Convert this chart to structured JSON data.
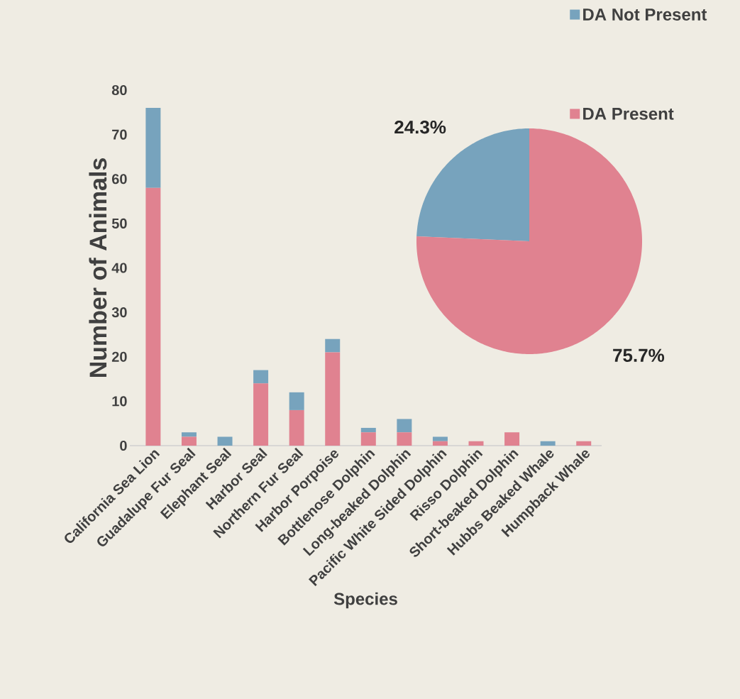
{
  "chart_data": [
    {
      "type": "bar",
      "stacked": true,
      "xlabel": "Species",
      "ylabel": "Number of Animals",
      "categories": [
        "California Sea Lion",
        "Guadalupe Fur Seal",
        "Elephant Seal",
        "Harbor Seal",
        "Northern Fur Seal",
        "Harbor Porpoise",
        "Bottlenose Dolphin",
        "Long-beaked Dolphin",
        "Pacific White Sided Dolphin",
        "Risso Dolphin",
        "Short-beaked Dolphin",
        "Hubbs Beaked Whale",
        "Humpback Whale"
      ],
      "series": [
        {
          "color": "#e08290",
          "values": [
            58,
            2,
            0,
            14,
            8,
            21,
            3,
            3,
            1,
            1,
            3,
            0,
            1
          ]
        },
        {
          "color": "#77a3bd",
          "values": [
            18,
            1,
            2,
            3,
            4,
            3,
            1,
            3,
            1,
            0,
            0,
            1,
            0
          ]
        }
      ],
      "ylim": [
        0,
        80
      ],
      "yticks": [
        0,
        10,
        20,
        30,
        40,
        50,
        60,
        70,
        80
      ],
      "grid": false
    },
    {
      "type": "pie",
      "categories": [
        "DA Not Present",
        "DA Present"
      ],
      "values": [
        24.3,
        75.7
      ],
      "colors": [
        "#77a3bd",
        "#e08290"
      ],
      "value_labels": [
        "24.3%",
        "75.7%"
      ],
      "legend": "top right"
    }
  ]
}
